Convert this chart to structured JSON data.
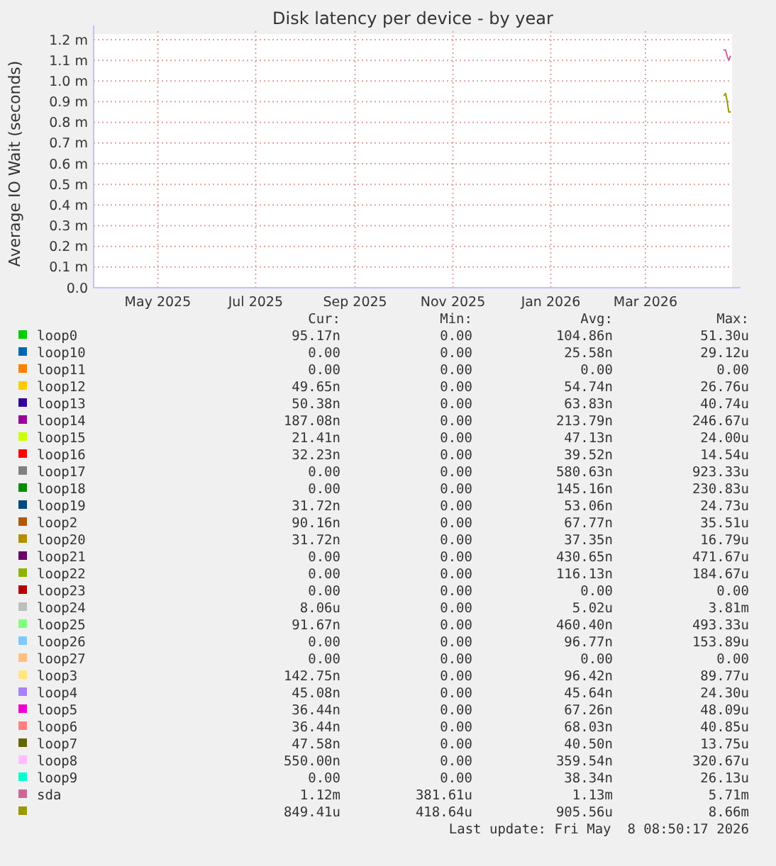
{
  "chart_data": {
    "type": "line",
    "title": "Disk latency per device - by year",
    "ylabel": "Average IO Wait (seconds)",
    "x": [
      "2026-04-19",
      "2026-04-20",
      "2026-04-21",
      "2026-04-22",
      "2026-04-23"
    ],
    "xlim": [
      "2025-03-22",
      "2026-04-24"
    ],
    "xticks": [
      {
        "value": "2025-05-01",
        "label": "May 2025"
      },
      {
        "value": "2025-07-01",
        "label": "Jul 2025"
      },
      {
        "value": "2025-09-01",
        "label": "Sep 2025"
      },
      {
        "value": "2025-11-01",
        "label": "Nov 2025"
      },
      {
        "value": "2026-01-01",
        "label": "Jan 2026"
      },
      {
        "value": "2026-03-01",
        "label": "Mar 2026"
      }
    ],
    "ylim": [
      0,
      1.2
    ],
    "yticks": [
      {
        "value": 0,
        "label": "0.0"
      },
      {
        "value": 0.1,
        "label": "0.1 m"
      },
      {
        "value": 0.2,
        "label": "0.2 m"
      },
      {
        "value": 0.3,
        "label": "0.3 m"
      },
      {
        "value": 0.4,
        "label": "0.4 m"
      },
      {
        "value": 0.5,
        "label": "0.5 m"
      },
      {
        "value": 0.6,
        "label": "0.6 m"
      },
      {
        "value": 0.7,
        "label": "0.7 m"
      },
      {
        "value": 0.8,
        "label": "0.8 m"
      },
      {
        "value": 0.9,
        "label": "0.9 m"
      },
      {
        "value": 1.0,
        "label": "1.0 m"
      },
      {
        "value": 1.1,
        "label": "1.1 m"
      },
      {
        "value": 1.2,
        "label": "1.2 m"
      }
    ],
    "grid": true,
    "line_style": "solid",
    "legend": "bottom",
    "series": [
      {
        "name": "loop0",
        "color": "#00cc00",
        "values": [
          null,
          null,
          null,
          null,
          null
        ]
      },
      {
        "name": "loop10",
        "color": "#0066b3",
        "values": [
          null,
          null,
          null,
          null,
          null
        ]
      },
      {
        "name": "loop11",
        "color": "#ff8000",
        "values": [
          null,
          null,
          null,
          null,
          null
        ]
      },
      {
        "name": "loop12",
        "color": "#ffcc00",
        "values": [
          null,
          null,
          null,
          null,
          null
        ]
      },
      {
        "name": "loop13",
        "color": "#330099",
        "values": [
          null,
          null,
          null,
          null,
          null
        ]
      },
      {
        "name": "loop14",
        "color": "#990099",
        "values": [
          null,
          null,
          null,
          null,
          null
        ]
      },
      {
        "name": "loop15",
        "color": "#ccff00",
        "values": [
          null,
          null,
          null,
          null,
          null
        ]
      },
      {
        "name": "loop16",
        "color": "#ff0000",
        "values": [
          null,
          null,
          null,
          null,
          null
        ]
      },
      {
        "name": "loop17",
        "color": "#808080",
        "values": [
          null,
          null,
          null,
          null,
          null
        ]
      },
      {
        "name": "loop18",
        "color": "#008f00",
        "values": [
          null,
          null,
          null,
          null,
          null
        ]
      },
      {
        "name": "loop19",
        "color": "#00487d",
        "values": [
          null,
          null,
          null,
          null,
          null
        ]
      },
      {
        "name": "loop2",
        "color": "#b35a00",
        "values": [
          null,
          null,
          null,
          null,
          null
        ]
      },
      {
        "name": "loop20",
        "color": "#b38f00",
        "values": [
          null,
          null,
          null,
          null,
          null
        ]
      },
      {
        "name": "loop21",
        "color": "#6b006b",
        "values": [
          null,
          null,
          null,
          null,
          null
        ]
      },
      {
        "name": "loop22",
        "color": "#8fb300",
        "values": [
          null,
          null,
          null,
          null,
          null
        ]
      },
      {
        "name": "loop23",
        "color": "#b30000",
        "values": [
          null,
          null,
          null,
          null,
          null
        ]
      },
      {
        "name": "loop24",
        "color": "#bebebe",
        "values": [
          null,
          null,
          null,
          null,
          null
        ]
      },
      {
        "name": "loop25",
        "color": "#80ff80",
        "values": [
          null,
          null,
          null,
          null,
          null
        ]
      },
      {
        "name": "loop26",
        "color": "#80c9ff",
        "values": [
          null,
          null,
          null,
          null,
          null
        ]
      },
      {
        "name": "loop27",
        "color": "#ffc080",
        "values": [
          null,
          null,
          null,
          null,
          null
        ]
      },
      {
        "name": "loop3",
        "color": "#ffe680",
        "values": [
          null,
          null,
          null,
          null,
          null
        ]
      },
      {
        "name": "loop4",
        "color": "#aa80ff",
        "values": [
          null,
          null,
          null,
          null,
          null
        ]
      },
      {
        "name": "loop5",
        "color": "#ee00cc",
        "values": [
          null,
          null,
          null,
          null,
          null
        ]
      },
      {
        "name": "loop6",
        "color": "#ff8080",
        "values": [
          null,
          null,
          null,
          null,
          null
        ]
      },
      {
        "name": "loop7",
        "color": "#666600",
        "values": [
          null,
          null,
          null,
          null,
          null
        ]
      },
      {
        "name": "loop8",
        "color": "#ffbfff",
        "values": [
          null,
          null,
          null,
          null,
          null
        ]
      },
      {
        "name": "loop9",
        "color": "#00ffcc",
        "values": [
          null,
          null,
          null,
          null,
          null
        ]
      },
      {
        "name": "sda",
        "color": "#cc6699",
        "values": [
          1.15,
          1.15,
          1.12,
          1.1,
          1.12
        ]
      },
      {
        "color": "#999900",
        "values": [
          0.93,
          0.94,
          0.9,
          0.85,
          0.85
        ]
      }
    ],
    "annotations": [
      "Cur:",
      "Min:",
      "Avg:",
      "Max:",
      "95.17n",
      "0.00",
      "104.86n",
      "51.30u",
      "0.00",
      "0.00",
      "25.58n",
      "29.12u",
      "0.00",
      "0.00",
      "0.00",
      "0.00",
      "49.65n",
      "0.00",
      "54.74n",
      "26.76u",
      "50.38n",
      "0.00",
      "63.83n",
      "40.74u",
      "187.08n",
      "0.00",
      "213.79n",
      "246.67u",
      "21.41n",
      "0.00",
      "47.13n",
      "24.00u",
      "32.23n",
      "0.00",
      "39.52n",
      "14.54u",
      "0.00",
      "0.00",
      "580.63n",
      "923.33u",
      "0.00",
      "0.00",
      "145.16n",
      "230.83u",
      "31.72n",
      "0.00",
      "53.06n",
      "24.73u",
      "90.16n",
      "0.00",
      "67.77n",
      "35.51u",
      "31.72n",
      "0.00",
      "37.35n",
      "16.79u",
      "0.00",
      "0.00",
      "430.65n",
      "471.67u",
      "0.00",
      "0.00",
      "116.13n",
      "184.67u",
      "0.00",
      "0.00",
      "0.00",
      "0.00",
      "8.06u",
      "0.00",
      "5.02u",
      "3.81m",
      "91.67n",
      "0.00",
      "460.40n",
      "493.33u",
      "0.00",
      "0.00",
      "96.77n",
      "153.89u",
      "0.00",
      "0.00",
      "0.00",
      "0.00",
      "142.75n",
      "0.00",
      "96.42n",
      "89.77u",
      "45.08n",
      "0.00",
      "45.64n",
      "24.30u",
      "36.44n",
      "0.00",
      "67.26n",
      "48.09u",
      "36.44n",
      "0.00",
      "68.03n",
      "40.85u",
      "47.58n",
      "0.00",
      "40.50n",
      "13.75u",
      "550.00n",
      "0.00",
      "359.54n",
      "320.67u",
      "0.00",
      "0.00",
      "38.34n",
      "26.13u",
      "1.12m",
      "381.61u",
      "1.13m",
      "5.71m",
      "849.41u",
      "418.64u",
      "905.56u",
      "8.66m",
      "Last update: Fri May  8 08:50:17 2026"
    ]
  }
}
